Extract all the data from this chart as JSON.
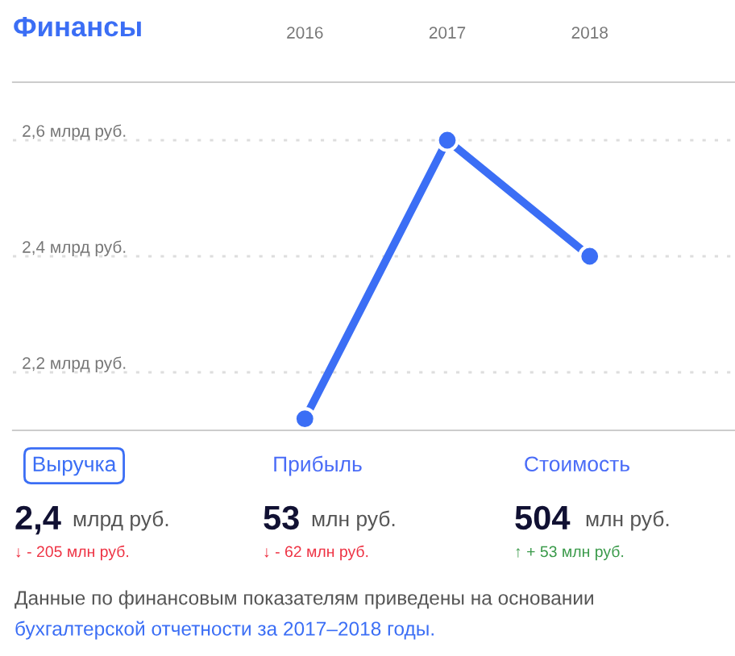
{
  "chart_data": [
    {
      "type": "line",
      "title": "Финансы",
      "categories": [
        "2016",
        "2017",
        "2018"
      ],
      "series": [
        {
          "color": "#3b6ef5",
          "values": [
            2.12,
            2.6,
            2.4
          ]
        }
      ],
      "yticks": [
        {
          "value": 2.2,
          "label": "2,2 млрд руб."
        },
        {
          "value": 2.4,
          "label": "2,4 млрд руб."
        },
        {
          "value": 2.6,
          "label": "2,6 млрд руб."
        }
      ],
      "ylim": [
        2.1,
        2.7
      ],
      "grid": "y",
      "marker": "circle",
      "line_style": "solid",
      "legend": false
    },
    {
      "type": "other",
      "annotations": [
        "Выручка",
        "Прибыль",
        "Стоимость",
        "2,4",
        "млрд руб.",
        "53",
        "млн руб.",
        "504",
        "млн руб.",
        "↓ - 205 млн руб.",
        "↓ - 62 млн руб.",
        "↑ + 53 млн руб.",
        "Данные по финансовым показателям приведены на основании",
        "бухгалтерской отчетности за 2017–2018 годы."
      ]
    }
  ]
}
